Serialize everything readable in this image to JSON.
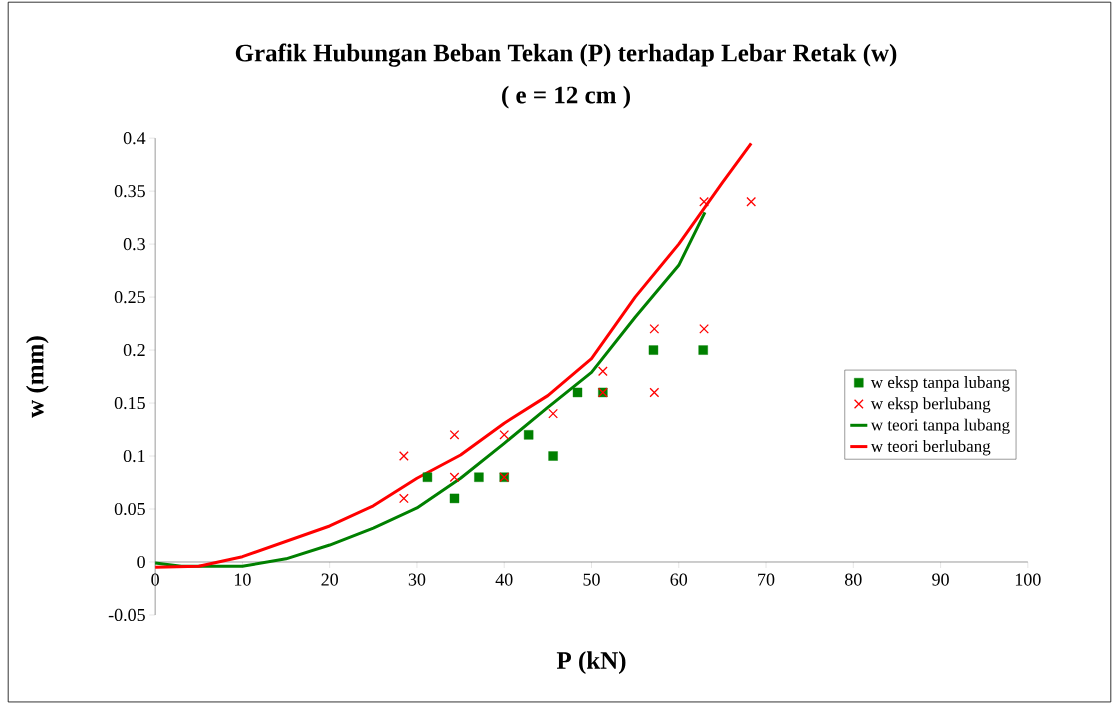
{
  "chart_data": {
    "type": "scatter",
    "title": "Grafik Hubungan Beban Tekan (P) terhadap Lebar Retak (w)",
    "subtitle": "( e = 12 cm )",
    "xlabel": "P (kN)",
    "ylabel": "w (mm)",
    "xlim": [
      0,
      100
    ],
    "xticks": [
      0,
      10,
      20,
      30,
      40,
      50,
      60,
      70,
      80,
      90,
      100
    ],
    "ylim": [
      -0.05,
      0.4
    ],
    "yticks": [
      -0.05,
      0,
      0.05,
      0.1,
      0.15,
      0.2,
      0.25,
      0.3,
      0.35,
      0.4
    ],
    "legend": "right",
    "series": [
      {
        "name": "w eksp tanpa lubang",
        "marker": "square",
        "color": "#008000",
        "x": [
          31.2,
          34.3,
          37.1,
          40.0,
          42.8,
          45.6,
          48.4,
          51.3,
          57.1,
          62.8
        ],
        "values": [
          0.08,
          0.06,
          0.08,
          0.08,
          0.12,
          0.1,
          0.16,
          0.16,
          0.2,
          0.2
        ]
      },
      {
        "name": "w eksp berlubang",
        "marker": "cross",
        "color": "#ff0000",
        "x": [
          28.5,
          28.5,
          34.3,
          34.3,
          40.0,
          40.0,
          45.6,
          51.3,
          51.3,
          57.2,
          57.2,
          62.9,
          62.9,
          68.3
        ],
        "values": [
          0.1,
          0.06,
          0.12,
          0.08,
          0.12,
          0.08,
          0.14,
          0.18,
          0.16,
          0.22,
          0.16,
          0.22,
          0.34,
          0.34
        ]
      },
      {
        "name": "w teori tanpa lubang",
        "type": "line",
        "marker": "none",
        "line_style": "solid",
        "color": "#008000",
        "x": [
          0,
          3,
          10,
          15,
          20,
          25,
          30,
          35,
          40,
          45,
          50,
          55,
          60,
          63.0
        ],
        "values": [
          -0.001,
          -0.004,
          -0.004,
          0.003,
          0.016,
          0.032,
          0.051,
          0.079,
          0.112,
          0.146,
          0.179,
          0.231,
          0.28,
          0.33
        ]
      },
      {
        "name": "w teori berlubang",
        "type": "line",
        "marker": "none",
        "line_style": "solid",
        "color": "#ff0000",
        "x": [
          0,
          5,
          10,
          20,
          25,
          30,
          35,
          40,
          45,
          50,
          55,
          60,
          65,
          68.3
        ],
        "values": [
          -0.005,
          -0.004,
          0.005,
          0.034,
          0.053,
          0.079,
          0.101,
          0.131,
          0.157,
          0.192,
          0.25,
          0.3,
          0.358,
          0.395
        ]
      }
    ]
  }
}
